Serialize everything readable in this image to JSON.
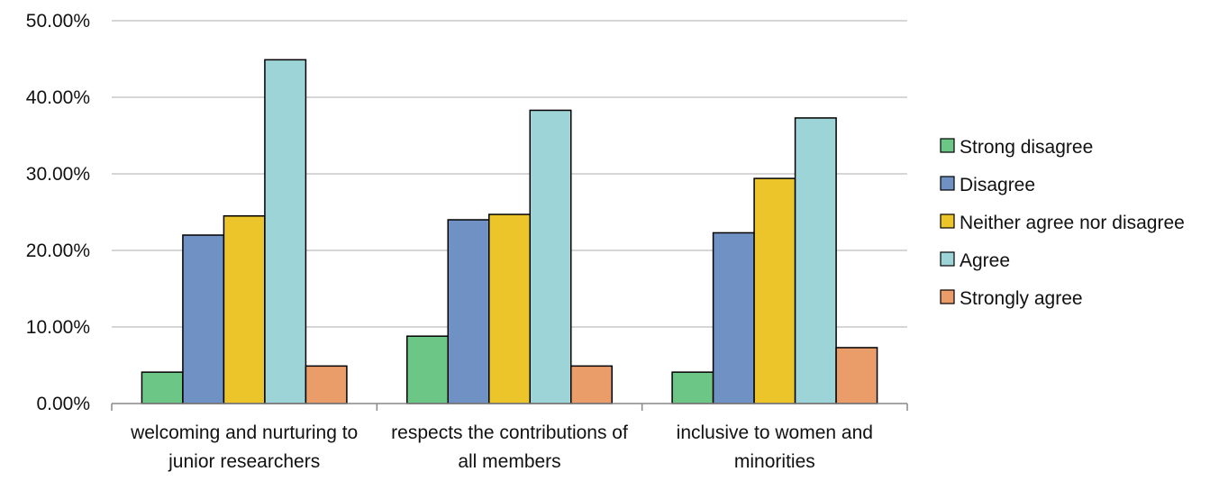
{
  "chart_data": {
    "type": "bar",
    "categories": [
      [
        "welcoming and nurturing to",
        "junior researchers"
      ],
      [
        "respects the contributions of",
        "all members"
      ],
      [
        "inclusive to women and",
        "minorities"
      ]
    ],
    "series": [
      {
        "name": "Strong disagree",
        "color": "#6cc686",
        "values": [
          4.1,
          8.8,
          4.1
        ]
      },
      {
        "name": "Disagree",
        "color": "#7091c4",
        "values": [
          22.0,
          24.0,
          22.3
        ]
      },
      {
        "name": "Neither agree nor disagree",
        "color": "#ecc52a",
        "values": [
          24.5,
          24.7,
          29.4
        ]
      },
      {
        "name": "Agree",
        "color": "#9dd4d8",
        "values": [
          44.9,
          38.3,
          37.3
        ]
      },
      {
        "name": "Strongly agree",
        "color": "#eb9d69",
        "values": [
          4.9,
          4.9,
          7.3
        ]
      }
    ],
    "ylim": [
      0,
      50
    ],
    "yticks": [
      "0.00%",
      "10.00%",
      "20.00%",
      "30.00%",
      "40.00%",
      "50.00%"
    ],
    "grid": true,
    "legend": "right",
    "title": "",
    "xlabel": "",
    "ylabel": ""
  }
}
